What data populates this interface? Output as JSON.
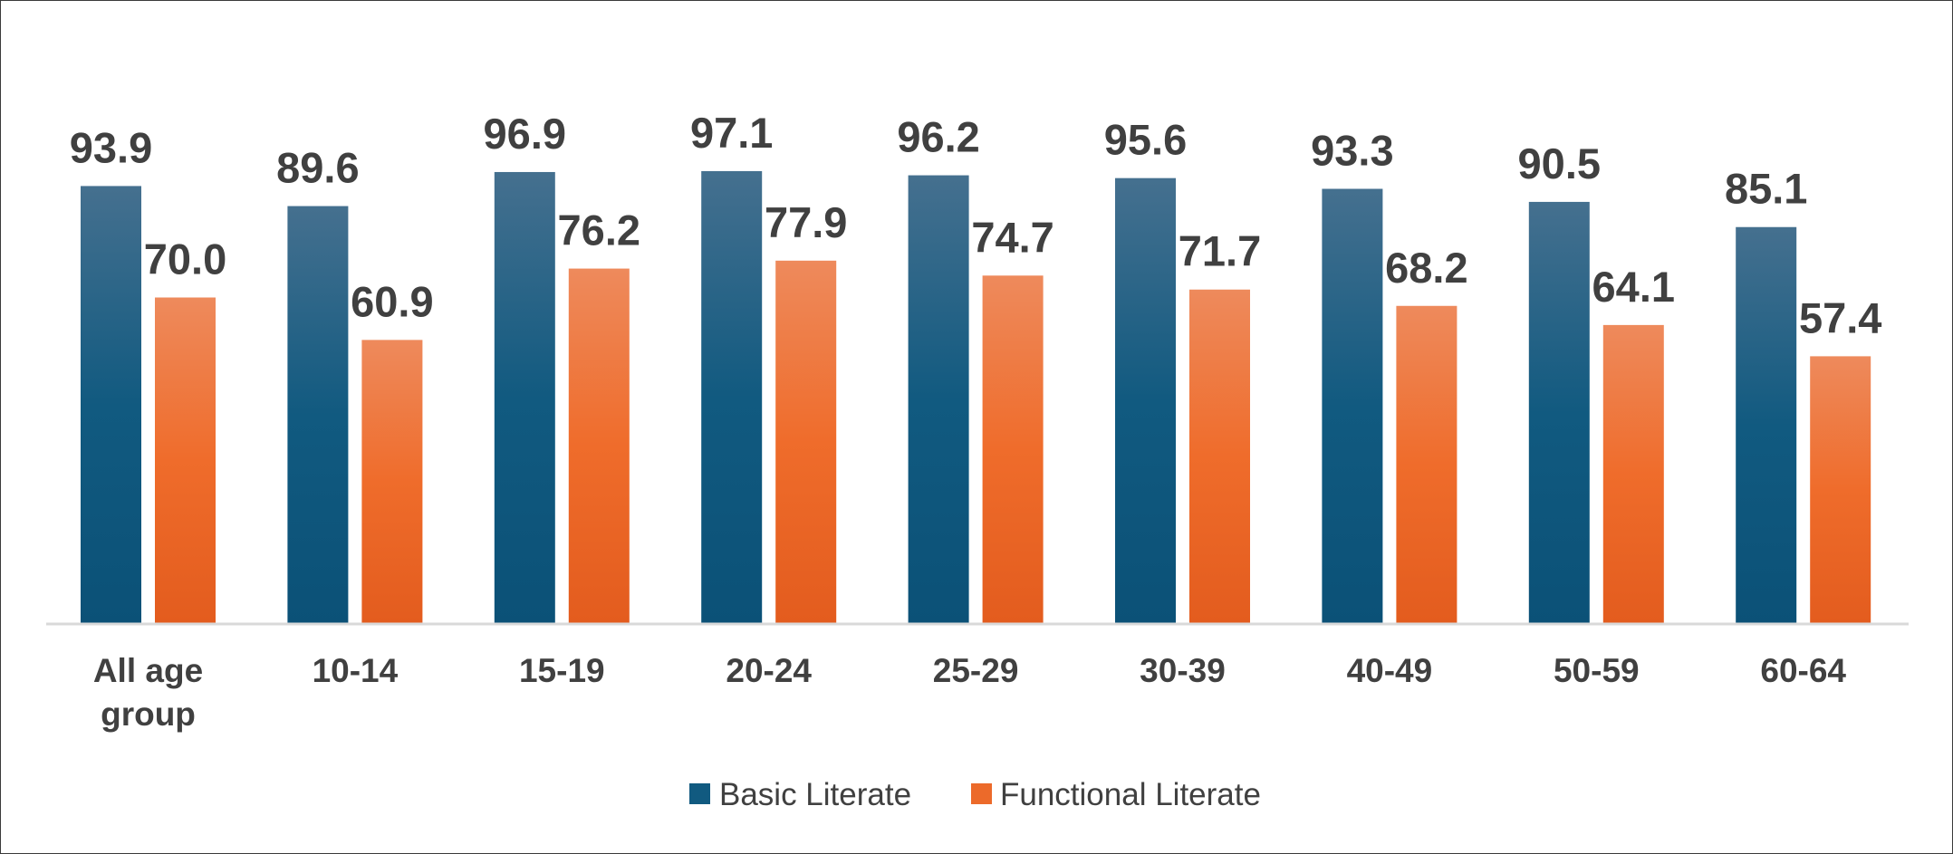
{
  "chart_data": {
    "type": "bar",
    "categories": [
      [
        "All age",
        "group"
      ],
      [
        "10-14"
      ],
      [
        "15-19"
      ],
      [
        "20-24"
      ],
      [
        "25-29"
      ],
      [
        "30-39"
      ],
      [
        "40-49"
      ],
      [
        "50-59"
      ],
      [
        "60-64"
      ]
    ],
    "series": [
      {
        "name": "Basic Literate",
        "values": [
          93.9,
          89.6,
          96.9,
          97.1,
          96.2,
          95.6,
          93.3,
          90.5,
          85.1
        ],
        "labels": [
          "93.9",
          "89.6",
          "96.9",
          "97.1",
          "96.2",
          "95.6",
          "93.3",
          "90.5",
          "85.1"
        ],
        "color": "#115a80"
      },
      {
        "name": "Functional Literate",
        "values": [
          70.0,
          60.9,
          76.2,
          77.9,
          74.7,
          71.7,
          68.2,
          64.1,
          57.4
        ],
        "labels": [
          "70.0",
          "60.9",
          "76.2",
          "77.9",
          "74.7",
          "71.7",
          "68.2",
          "64.1",
          "57.4"
        ],
        "color": "#ec6a2a"
      }
    ],
    "title": "",
    "xlabel": "",
    "ylabel": "",
    "ylim": [
      0,
      100
    ],
    "grid": false,
    "legend": "bottom"
  }
}
